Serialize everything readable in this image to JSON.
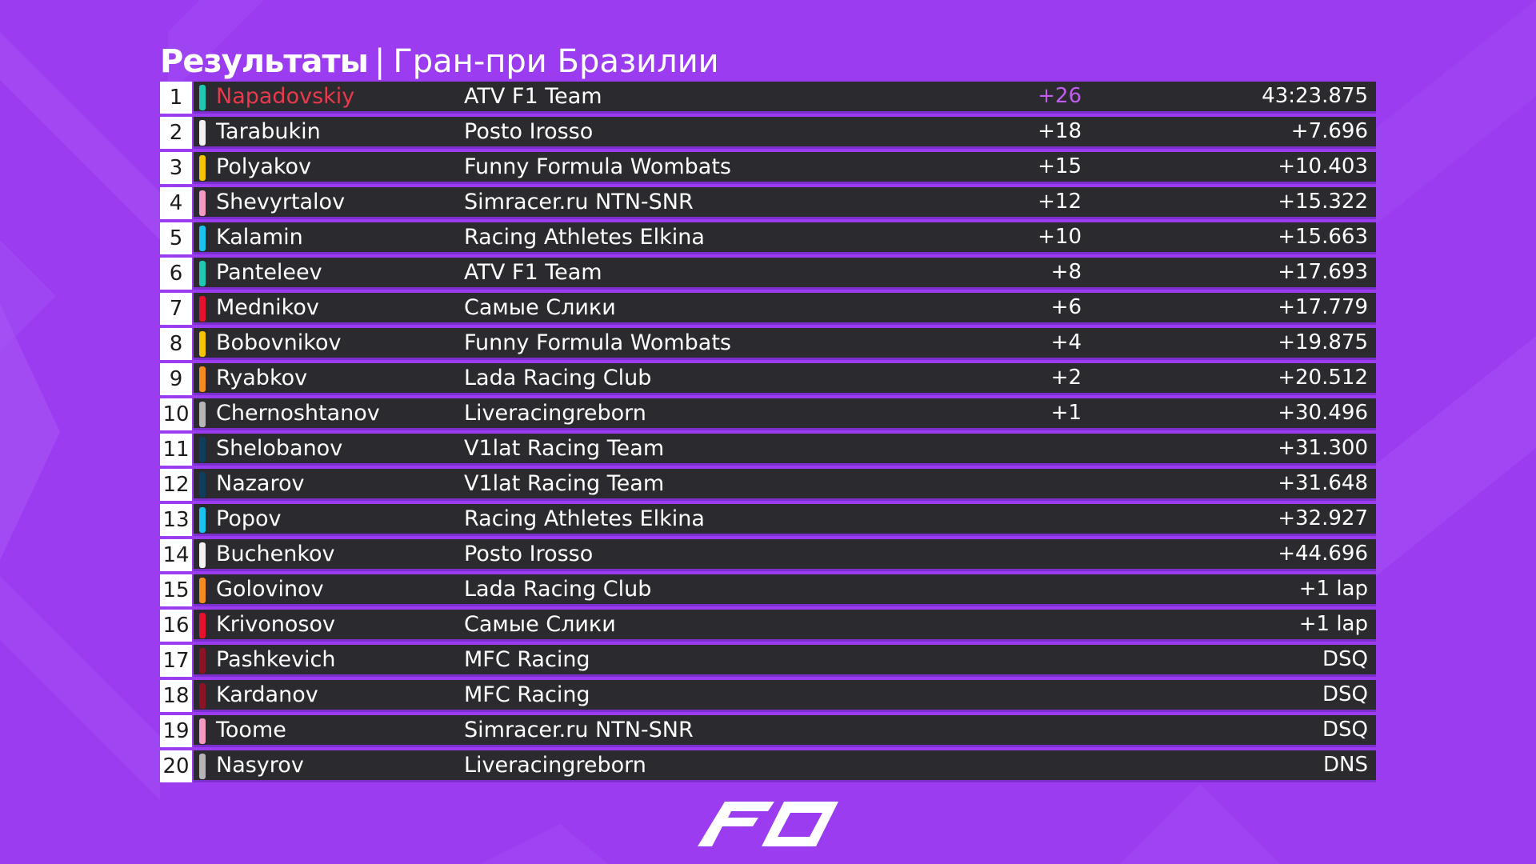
{
  "header": {
    "title_bold": "Результаты",
    "separator": "|",
    "race_name": "Гран-при Бразилии"
  },
  "colors": {
    "background": "#9b3cf0",
    "row_background": "#2b2a2e",
    "row_divider": "#7c2fd0",
    "winner_name": "#e83a4c",
    "fastest_lap_points": "#c15cf0"
  },
  "results": [
    {
      "pos": "1",
      "driver": "Napadovskiy",
      "team": "ATV F1 Team",
      "points": "+26",
      "time": "43:23.875",
      "team_color": "#1ec9b4"
    },
    {
      "pos": "2",
      "driver": "Tarabukin",
      "team": "Posto Irosso",
      "points": "+18",
      "time": "+7.696",
      "team_color": "#f2f2f2"
    },
    {
      "pos": "3",
      "driver": "Polyakov",
      "team": "Funny Formula Wombats",
      "points": "+15",
      "time": "+10.403",
      "team_color": "#f5c400"
    },
    {
      "pos": "4",
      "driver": "Shevyrtalov",
      "team": "Simracer.ru NTN-SNR",
      "points": "+12",
      "time": "+15.322",
      "team_color": "#f49ac2"
    },
    {
      "pos": "5",
      "driver": "Kalamin",
      "team": "Racing Athletes Elkina",
      "points": "+10",
      "time": "+15.663",
      "team_color": "#19c3f0"
    },
    {
      "pos": "6",
      "driver": "Panteleev",
      "team": "ATV F1 Team",
      "points": "+8",
      "time": "+17.693",
      "team_color": "#1ec9b4"
    },
    {
      "pos": "7",
      "driver": "Mednikov",
      "team": "Самые Слики",
      "points": "+6",
      "time": "+17.779",
      "team_color": "#e8112d"
    },
    {
      "pos": "8",
      "driver": "Bobovnikov",
      "team": "Funny Formula Wombats",
      "points": "+4",
      "time": "+19.875",
      "team_color": "#f5c400"
    },
    {
      "pos": "9",
      "driver": "Ryabkov",
      "team": "Lada Racing Club",
      "points": "+2",
      "time": "+20.512",
      "team_color": "#f58a1f"
    },
    {
      "pos": "10",
      "driver": "Chernoshtanov",
      "team": "Liveracingreborn",
      "points": "+1",
      "time": "+30.496",
      "team_color": "#b5b5b5"
    },
    {
      "pos": "11",
      "driver": "Shelobanov",
      "team": "V1lat Racing Team",
      "points": "",
      "time": "+31.300",
      "team_color": "#0f3d5e"
    },
    {
      "pos": "12",
      "driver": "Nazarov",
      "team": "V1lat Racing Team",
      "points": "",
      "time": "+31.648",
      "team_color": "#0f3d5e"
    },
    {
      "pos": "13",
      "driver": "Popov",
      "team": "Racing Athletes Elkina",
      "points": "",
      "time": "+32.927",
      "team_color": "#19c3f0"
    },
    {
      "pos": "14",
      "driver": "Buchenkov",
      "team": "Posto Irosso",
      "points": "",
      "time": "+44.696",
      "team_color": "#f2f2f2"
    },
    {
      "pos": "15",
      "driver": "Golovinov",
      "team": "Lada Racing Club",
      "points": "",
      "time": "+1 lap",
      "team_color": "#f58a1f"
    },
    {
      "pos": "16",
      "driver": "Krivonosov",
      "team": "Самые Слики",
      "points": "",
      "time": "+1 lap",
      "team_color": "#e8112d"
    },
    {
      "pos": "17",
      "driver": "Pashkevich",
      "team": "MFC Racing",
      "points": "",
      "time": "DSQ",
      "team_color": "#8a1426"
    },
    {
      "pos": "18",
      "driver": "Kardanov",
      "team": "MFC Racing",
      "points": "",
      "time": "DSQ",
      "team_color": "#8a1426"
    },
    {
      "pos": "19",
      "driver": "Toome",
      "team": "Simracer.ru NTN-SNR",
      "points": "",
      "time": "DSQ",
      "team_color": "#f49ac2"
    },
    {
      "pos": "20",
      "driver": "Nasyrov",
      "team": "Liveracingreborn",
      "points": "",
      "time": "DNS",
      "team_color": "#b5b5b5"
    }
  ],
  "logo": {
    "icon": "f0-logo-icon"
  }
}
